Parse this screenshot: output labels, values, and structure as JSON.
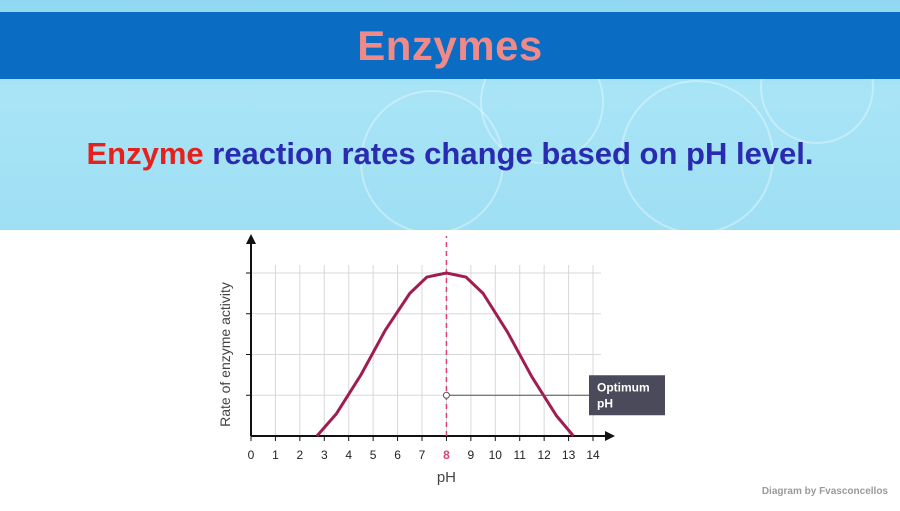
{
  "header": {
    "title": "Enzymes"
  },
  "subtitle": {
    "highlight": "Enzyme",
    "rest": " reaction rates change based on pH level."
  },
  "colors": {
    "title_bar": "#0a6cc2",
    "title_text": "#f08a88",
    "highlight": "#e8201c",
    "subtitle_text": "#2a2bb0",
    "curve": "#a01d52",
    "optimum_line": "#e0407a",
    "callout_bg": "#4a4a5a"
  },
  "chart_data": {
    "type": "line",
    "xlabel": "pH",
    "ylabel": "Rate of enzyme activity",
    "xlim": [
      0,
      14
    ],
    "ylim": [
      0,
      4
    ],
    "x_ticks": [
      "0",
      "1",
      "2",
      "3",
      "4",
      "5",
      "6",
      "7",
      "8",
      "9",
      "10",
      "11",
      "12",
      "13",
      "14"
    ],
    "highlight_tick": "8",
    "grid": true,
    "series": [
      {
        "x": [
          2.7,
          3.5,
          4.5,
          5.5,
          6.5,
          7.2,
          8.0,
          8.8,
          9.5,
          10.5,
          11.5,
          12.5,
          13.2
        ],
        "y": [
          0.0,
          0.55,
          1.5,
          2.6,
          3.5,
          3.9,
          4.0,
          3.9,
          3.5,
          2.55,
          1.45,
          0.5,
          0.0
        ]
      }
    ],
    "optimum": {
      "x": 8,
      "label": "Optimum pH",
      "marker_y": 1.0
    }
  },
  "credit": "Diagram by Fvasconcellos"
}
